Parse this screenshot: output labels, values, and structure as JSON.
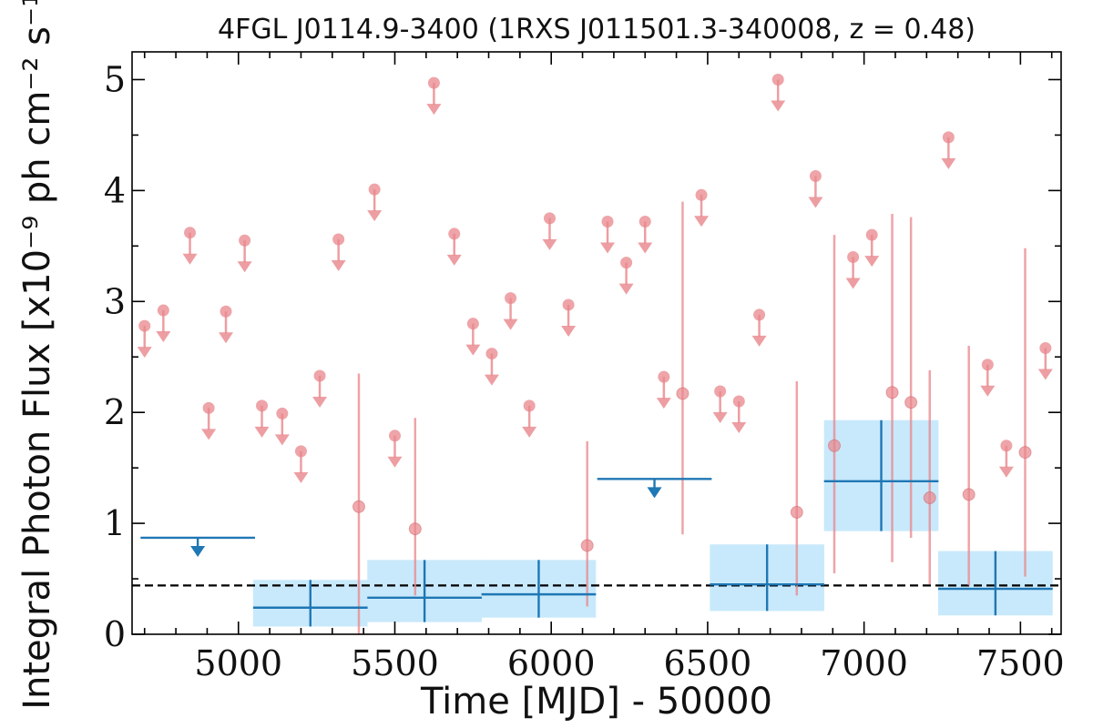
{
  "chart_data": {
    "type": "scatter",
    "title": "4FGL J0114.9-3400 (1RXS J011501.3-340008, z = 0.48)",
    "xlabel": "Time [MJD] - 50000",
    "ylabel": "Integral Photon Flux [x10⁻⁹ ph cm⁻² s⁻¹]",
    "xlim": [
      4660,
      7630
    ],
    "ylim": [
      0,
      5.25
    ],
    "x_ticks": [
      5000,
      5500,
      6000,
      6500,
      7000,
      7500
    ],
    "x_tick_labels": [
      "5000",
      "5500",
      "6000",
      "6500",
      "7000",
      "7500"
    ],
    "y_ticks": [
      0,
      1,
      2,
      3,
      4,
      5
    ],
    "y_tick_labels": [
      "0",
      "1",
      "2",
      "3",
      "4",
      "5"
    ],
    "colors": {
      "short_bins": "#e8868b",
      "long_bins": "#1f77b4",
      "long_bins_band": "#c8e9fb",
      "mean_line": "#000000"
    },
    "series": [
      {
        "marker": "circle",
        "upper_limits": [
          {
            "x": 4700,
            "y": 2.78
          },
          {
            "x": 4760,
            "y": 2.92
          },
          {
            "x": 4845,
            "y": 3.62
          },
          {
            "x": 4905,
            "y": 2.04
          },
          {
            "x": 4960,
            "y": 2.91
          },
          {
            "x": 5020,
            "y": 3.55
          },
          {
            "x": 5075,
            "y": 2.06
          },
          {
            "x": 5140,
            "y": 1.99
          },
          {
            "x": 5200,
            "y": 1.65
          },
          {
            "x": 5260,
            "y": 2.33
          },
          {
            "x": 5320,
            "y": 3.56
          },
          {
            "x": 5435,
            "y": 4.01
          },
          {
            "x": 5500,
            "y": 1.79
          },
          {
            "x": 5625,
            "y": 4.97
          },
          {
            "x": 5690,
            "y": 3.61
          },
          {
            "x": 5750,
            "y": 2.8
          },
          {
            "x": 5810,
            "y": 2.53
          },
          {
            "x": 5870,
            "y": 3.03
          },
          {
            "x": 5930,
            "y": 2.06
          },
          {
            "x": 5995,
            "y": 3.75
          },
          {
            "x": 6055,
            "y": 2.97
          },
          {
            "x": 6180,
            "y": 3.72
          },
          {
            "x": 6240,
            "y": 3.35
          },
          {
            "x": 6300,
            "y": 3.72
          },
          {
            "x": 6360,
            "y": 2.32
          },
          {
            "x": 6480,
            "y": 3.96
          },
          {
            "x": 6540,
            "y": 2.19
          },
          {
            "x": 6600,
            "y": 2.1
          },
          {
            "x": 6665,
            "y": 2.88
          },
          {
            "x": 6725,
            "y": 5.0
          },
          {
            "x": 6845,
            "y": 4.13
          },
          {
            "x": 6965,
            "y": 3.4
          },
          {
            "x": 7025,
            "y": 3.6
          },
          {
            "x": 7270,
            "y": 4.48
          },
          {
            "x": 7395,
            "y": 2.43
          },
          {
            "x": 7455,
            "y": 1.7
          },
          {
            "x": 7580,
            "y": 2.58
          }
        ],
        "detections": [
          {
            "x": 5385,
            "y": 1.15,
            "ylow": 0.0,
            "yhigh": 2.35
          },
          {
            "x": 5565,
            "y": 0.95,
            "ylow": 0.35,
            "yhigh": 1.95
          },
          {
            "x": 6115,
            "y": 0.8,
            "ylow": 0.25,
            "yhigh": 1.74
          },
          {
            "x": 6420,
            "y": 2.17,
            "ylow": 0.9,
            "yhigh": 3.9
          },
          {
            "x": 6785,
            "y": 1.1,
            "ylow": 0.35,
            "yhigh": 2.28
          },
          {
            "x": 6905,
            "y": 1.7,
            "ylow": 0.55,
            "yhigh": 3.6
          },
          {
            "x": 7090,
            "y": 2.18,
            "ylow": 0.65,
            "yhigh": 3.79
          },
          {
            "x": 7150,
            "y": 2.09,
            "ylow": 0.87,
            "yhigh": 3.76
          },
          {
            "x": 7210,
            "y": 1.23,
            "ylow": 0.45,
            "yhigh": 2.38
          },
          {
            "x": 7335,
            "y": 1.26,
            "ylow": 0.44,
            "yhigh": 2.6
          },
          {
            "x": 7515,
            "y": 1.64,
            "ylow": 0.52,
            "yhigh": 3.48
          }
        ]
      },
      {
        "marker": "cross",
        "upper_limits": [
          {
            "x": 4870,
            "xerr": 183,
            "y": 0.87
          },
          {
            "x": 6330,
            "xerr": 183,
            "y": 1.4
          }
        ],
        "detections": [
          {
            "x": 5230,
            "xerr": 183,
            "y": 0.24,
            "ylow": 0.07,
            "yhigh": 0.49
          },
          {
            "x": 5595,
            "xerr": 183,
            "y": 0.33,
            "ylow": 0.11,
            "yhigh": 0.67
          },
          {
            "x": 5960,
            "xerr": 183,
            "y": 0.36,
            "ylow": 0.15,
            "yhigh": 0.67
          },
          {
            "x": 6690,
            "xerr": 183,
            "y": 0.45,
            "ylow": 0.21,
            "yhigh": 0.81
          },
          {
            "x": 7055,
            "xerr": 183,
            "y": 1.38,
            "ylow": 0.93,
            "yhigh": 1.93
          },
          {
            "x": 7420,
            "xerr": 183,
            "y": 0.41,
            "ylow": 0.17,
            "yhigh": 0.75
          }
        ]
      }
    ],
    "mean_flux": 0.44,
    "grid": false,
    "legend": "none"
  }
}
